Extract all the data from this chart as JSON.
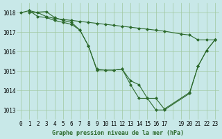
{
  "title": "Graphe pression niveau de la mer (hPa)",
  "bg_color": "#c8e8e8",
  "grid_color": "#a0c8a0",
  "line_color": "#2d6a2d",
  "marker_color": "#2d6a2d",
  "xlim": [
    -0.5,
    23.5
  ],
  "ylim": [
    1012.5,
    1018.5
  ],
  "yticks": [
    1013,
    1014,
    1015,
    1016,
    1017,
    1018
  ],
  "xticks": [
    0,
    1,
    2,
    3,
    4,
    5,
    6,
    7,
    8,
    9,
    10,
    11,
    12,
    13,
    14,
    15,
    16,
    17,
    18,
    19,
    20,
    21,
    22,
    23
  ],
  "xtick_labels": [
    "0",
    "1",
    "2",
    "3",
    "4",
    "5",
    "6",
    "7",
    "8",
    "9",
    "10",
    "11",
    "12",
    "13",
    "14",
    "15",
    "16",
    "17",
    "",
    "19",
    "20",
    "21",
    "22",
    "23"
  ],
  "series": [
    {
      "x": [
        0,
        1,
        2,
        3,
        4,
        5,
        6,
        7,
        8,
        9,
        10,
        11,
        12,
        13,
        14,
        15,
        16,
        17,
        19,
        20,
        21,
        22,
        23
      ],
      "y": [
        1018.0,
        1018.1,
        1018.0,
        1017.8,
        1017.7,
        1017.65,
        1017.6,
        1017.55,
        1017.5,
        1017.45,
        1017.4,
        1017.35,
        1017.3,
        1017.25,
        1017.2,
        1017.15,
        1017.1,
        1017.05,
        1016.9,
        1016.85,
        1016.6,
        1016.6,
        1016.6
      ]
    },
    {
      "x": [
        1,
        2,
        3,
        4,
        5,
        6,
        7,
        8,
        9,
        10,
        11,
        12,
        13,
        14,
        15,
        16,
        17,
        20,
        21,
        22,
        23
      ],
      "y": [
        1018.1,
        1017.8,
        1017.75,
        1017.6,
        1017.5,
        1017.4,
        1017.1,
        1016.3,
        1015.1,
        1015.05,
        1015.05,
        1015.1,
        1014.5,
        1014.3,
        1013.6,
        1013.6,
        1013.05,
        1013.9,
        1015.25,
        1016.05,
        1016.6
      ]
    },
    {
      "x": [
        1,
        3,
        4,
        5,
        6,
        7,
        8,
        9,
        10,
        11,
        12,
        13,
        14,
        15,
        16,
        17,
        20,
        21,
        22,
        23
      ],
      "y": [
        1018.0,
        1018.05,
        1017.75,
        1017.6,
        1017.5,
        1017.1,
        1016.3,
        1015.05,
        1015.05,
        1015.05,
        1015.1,
        1014.3,
        1013.6,
        1013.6,
        1013.0,
        1013.0,
        1013.85,
        1015.25,
        1016.05,
        1016.6
      ]
    }
  ]
}
